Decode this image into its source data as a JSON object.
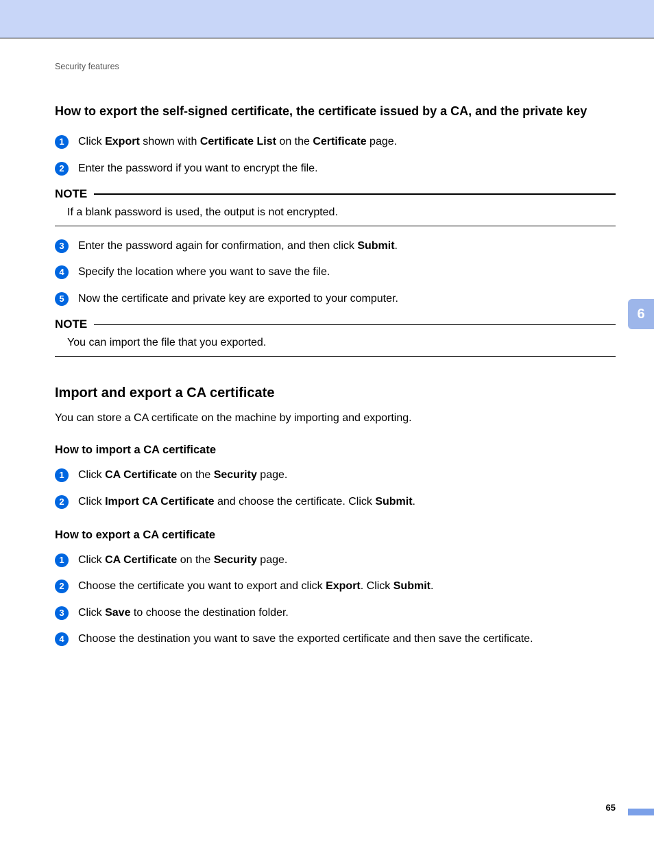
{
  "colors": {
    "banner": "#c8d6f8",
    "bullet": "#0066e0",
    "tab": "#9db6ea",
    "footerBar": "#7ba0e8"
  },
  "breadcrumb": "Security features",
  "sideTab": "6",
  "pageNumber": "65",
  "note_label": "NOTE",
  "section1": {
    "title": "How to export the self-signed certificate, the certificate issued by a CA, and the private key",
    "steps_a": [
      {
        "n": "1",
        "parts": [
          "Click ",
          "Export",
          " shown with ",
          "Certificate List",
          " on the ",
          "Certificate",
          " page."
        ]
      },
      {
        "n": "2",
        "parts": [
          "Enter the password if you want to encrypt the file."
        ]
      }
    ],
    "note1": "If a blank password is used, the output is not encrypted.",
    "steps_b": [
      {
        "n": "3",
        "parts": [
          "Enter the password again for confirmation, and then click ",
          "Submit",
          "."
        ]
      },
      {
        "n": "4",
        "parts": [
          "Specify the location where you want to save the file."
        ]
      },
      {
        "n": "5",
        "parts": [
          "Now the certificate and private key are exported to your computer."
        ]
      }
    ],
    "note2": "You can import the file that you exported."
  },
  "section2": {
    "title": "Import and export a CA certificate",
    "intro": "You can store a CA certificate on the machine by importing and exporting.",
    "sub1": {
      "title": "How to import a CA certificate",
      "steps": [
        {
          "n": "1",
          "parts": [
            "Click ",
            "CA Certificate",
            " on the ",
            "Security",
            " page."
          ]
        },
        {
          "n": "2",
          "parts": [
            "Click ",
            "Import CA Certificate",
            " and choose the certificate. Click ",
            "Submit",
            "."
          ]
        }
      ]
    },
    "sub2": {
      "title": "How to export a CA certificate",
      "steps": [
        {
          "n": "1",
          "parts": [
            "Click ",
            "CA Certificate",
            " on the ",
            "Security",
            " page."
          ]
        },
        {
          "n": "2",
          "parts": [
            "Choose the certificate you want to export and click ",
            "Export",
            ". Click ",
            "Submit",
            "."
          ]
        },
        {
          "n": "3",
          "parts": [
            "Click ",
            "Save",
            " to choose the destination folder."
          ]
        },
        {
          "n": "4",
          "parts": [
            "Choose the destination you want to save the exported certificate and then save the certificate."
          ]
        }
      ]
    }
  }
}
